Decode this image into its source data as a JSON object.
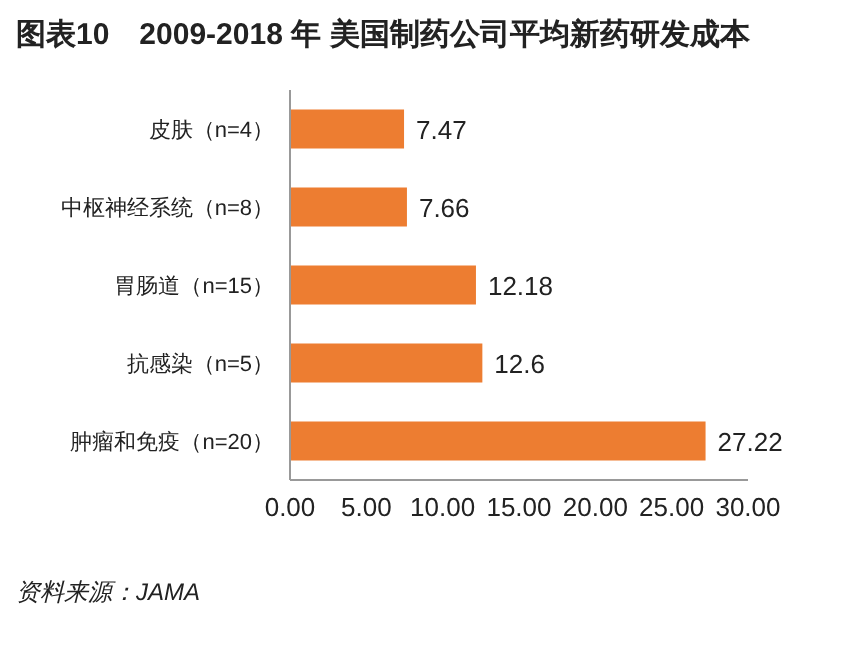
{
  "chart_data": {
    "type": "bar",
    "orientation": "horizontal",
    "title": "图表10　2009-2018 年 美国制药公司平均新药研发成本",
    "categories": [
      "皮肤（n=4）",
      "中枢神经系统（n=8）",
      "胃肠道（n=15）",
      "抗感染（n=5）",
      "肿瘤和免疫（n=20）"
    ],
    "values": [
      7.47,
      7.66,
      12.18,
      12.6,
      27.22
    ],
    "color": "#ed7d31",
    "data_labels": true,
    "xlim": [
      0,
      30
    ],
    "xticks": [
      {
        "value": 0,
        "label": "0.00"
      },
      {
        "value": 5,
        "label": "5.00"
      },
      {
        "value": 10,
        "label": "10.00"
      },
      {
        "value": 15,
        "label": "15.00"
      },
      {
        "value": 20,
        "label": "20.00"
      },
      {
        "value": 25,
        "label": "25.00"
      },
      {
        "value": 30,
        "label": "30.00"
      }
    ],
    "grid": false,
    "annotations": [
      "资料来源：JAMA"
    ]
  }
}
